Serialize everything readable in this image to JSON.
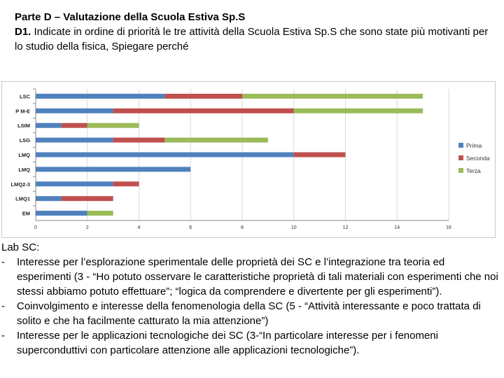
{
  "header": {
    "title": "Parte D – Valutazione della Scuola Estiva Sp.S",
    "question_number": "D1.",
    "question_text": " Indicate in ordine di priorità le tre attività della Scuola Estiva Sp.S che sono state più motivanti per lo studio della fisica, Spiegare perché"
  },
  "chart_data": {
    "type": "bar",
    "orientation": "horizontal",
    "stacked": true,
    "categories": [
      "LSC",
      "P M-E",
      "LSIM",
      "LSG",
      "LMQ",
      "LMQ",
      "LMQ2-3",
      "LMQ1",
      "EM"
    ],
    "series": [
      {
        "name": "Prima",
        "color": "#4f81bd",
        "values": [
          5,
          3,
          1,
          3,
          10,
          6,
          3,
          1,
          2
        ]
      },
      {
        "name": "Seconda",
        "color": "#c0504d",
        "values": [
          3,
          7,
          1,
          2,
          2,
          0,
          1,
          2,
          0
        ]
      },
      {
        "name": "Terza",
        "color": "#9bbb59",
        "values": [
          7,
          5,
          2,
          4,
          0,
          0,
          0,
          0,
          1
        ]
      }
    ],
    "xlim": [
      0,
      16
    ],
    "xticks": [
      "0",
      "2",
      "4",
      "6",
      "8",
      "10",
      "12",
      "14",
      "16"
    ],
    "grid": "vertical",
    "legend_position": "right"
  },
  "body": {
    "lead": "Lab SC:",
    "bullets": [
      {
        "dash": "-",
        "text": "Interesse per l’esplorazione sperimentale delle proprietà dei SC  e l’integrazione tra teoria ed esperimenti (3 - “Ho potuto osservare le caratteristiche proprietà di tali materiali con esperimenti che noi stessi abbiamo potuto effettuare”; “logica da comprendere e divertente per gli esperimenti”)."
      },
      {
        "dash": "-",
        "text": "Coinvolgimento e interesse della fenomenologia della SC (5 - “Attività interessante e poco trattata di solito e che ha facilmente catturato la mia attenzione”)"
      },
      {
        "dash": "-",
        "text": "Interesse per le applicazioni tecnologiche dei SC (3-“In particolare interesse per i fenomeni superconduttivi con particolare attenzione alle applicazioni tecnologiche”)."
      }
    ]
  }
}
